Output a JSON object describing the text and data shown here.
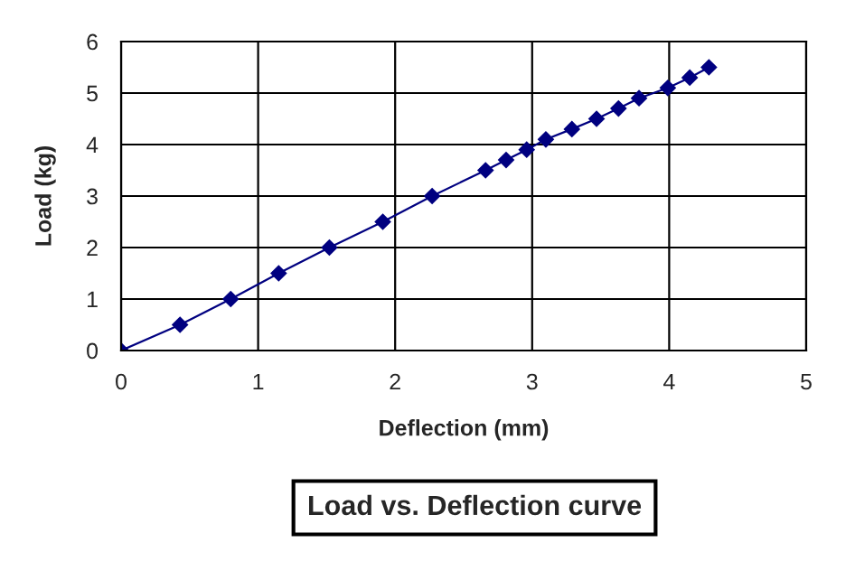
{
  "chart_data": {
    "type": "line",
    "title": "Load vs. Deflection curve",
    "xlabel": "Deflection (mm)",
    "ylabel": "Load (kg)",
    "series": [
      {
        "color": "#000080",
        "x": [
          0,
          0.43,
          0.8,
          1.15,
          1.52,
          1.91,
          2.27,
          2.66,
          2.81,
          2.96,
          3.1,
          3.29,
          3.47,
          3.63,
          3.78,
          3.99,
          4.15,
          4.29
        ],
        "values": [
          0,
          0.5,
          1,
          1.5,
          2,
          2.5,
          3,
          3.5,
          3.7,
          3.9,
          4.1,
          4.3,
          4.5,
          4.7,
          4.9,
          5.1,
          5.3,
          5.5
        ]
      }
    ],
    "xlim": [
      0,
      5
    ],
    "xticks": [
      0,
      1,
      2,
      3,
      4,
      5
    ],
    "ylim": [
      0,
      6
    ],
    "yticks": [
      0,
      1,
      2,
      3,
      4,
      5,
      6
    ],
    "grid": true,
    "marker": "diamond",
    "line_style": "solid"
  }
}
